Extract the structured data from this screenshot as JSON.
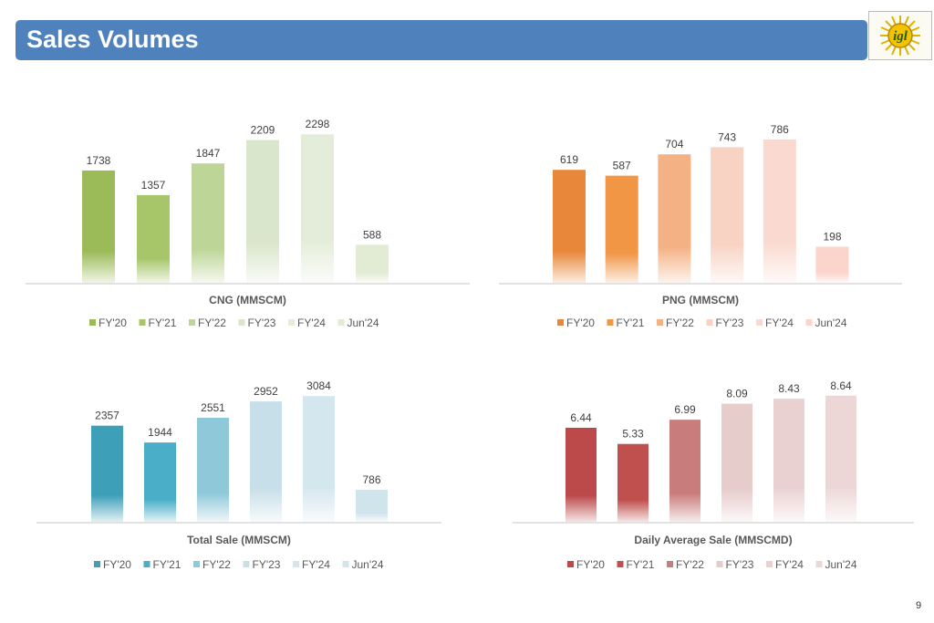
{
  "header": {
    "title": "Sales Volumes",
    "logo_text": "igl",
    "logo_icon": "igl-sun-logo"
  },
  "page_number": "9",
  "chart_data": [
    {
      "type": "bar",
      "title": "CNG (MMSCM)",
      "categories": [
        "FY'20",
        "FY'21",
        "FY'22",
        "FY'23",
        "FY'24",
        "Jun'24"
      ],
      "values": [
        1738,
        1357,
        1847,
        2209,
        2298,
        588
      ],
      "colors": [
        "#9bbb59",
        "#a7c66a",
        "#bdd698",
        "#dae6cb",
        "#e4edd9",
        "#e2ebd4"
      ],
      "ylim": [
        0,
        2400
      ],
      "legend_position": "bottom",
      "grid": false
    },
    {
      "type": "bar",
      "title": "PNG (MMSCM)",
      "categories": [
        "FY'20",
        "FY'21",
        "FY'22",
        "FY'23",
        "FY'24",
        "Jun'24"
      ],
      "values": [
        619,
        587,
        704,
        743,
        786,
        198
      ],
      "colors": [
        "#e8873a",
        "#f19645",
        "#f4b183",
        "#f8d3c4",
        "#fadad0",
        "#fbd5cc"
      ],
      "ylim": [
        0,
        820
      ],
      "legend_position": "bottom",
      "grid": false
    },
    {
      "type": "bar",
      "title": "Total Sale (MMSCM)",
      "categories": [
        "FY'20",
        "FY'21",
        "FY'22",
        "FY'23",
        "FY'24",
        "Jun'24"
      ],
      "values": [
        2357,
        1944,
        2551,
        2952,
        3084,
        786
      ],
      "colors": [
        "#3d9fb8",
        "#4aaec8",
        "#8fc8d8",
        "#c7dfe8",
        "#d4e6ee",
        "#d0e4ec"
      ],
      "ylim": [
        0,
        3200
      ],
      "legend_position": "bottom",
      "grid": false
    },
    {
      "type": "bar",
      "title": "Daily Average Sale (MMSCMD)",
      "categories": [
        "FY'20",
        "FY'21",
        "FY'22",
        "FY'23",
        "FY'24",
        "Jun'24"
      ],
      "values": [
        6.44,
        5.33,
        6.99,
        8.09,
        8.43,
        8.64
      ],
      "colors": [
        "#bc4a4a",
        "#c0504d",
        "#c97c7c",
        "#e7cccc",
        "#ead1d1",
        "#ecd6d6"
      ],
      "ylim": [
        0,
        9.0
      ],
      "legend_position": "bottom",
      "grid": false
    }
  ]
}
